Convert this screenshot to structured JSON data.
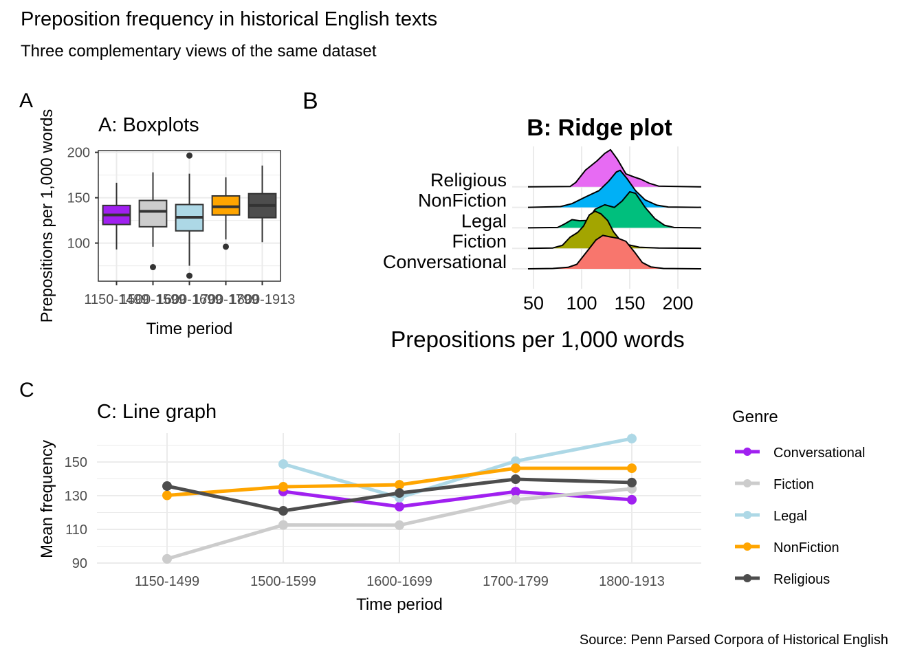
{
  "figure": {
    "title": "Preposition frequency in historical English texts",
    "subtitle": "Three complementary views of the same dataset",
    "caption": "Source: Penn Parsed Corpora of Historical English",
    "tags": [
      "A",
      "B",
      "C"
    ]
  },
  "colors": {
    "Conversational": "#A020F0",
    "Fiction": "#CCCCCC",
    "Legal": "#ADD8E6",
    "NonFiction": "#FFA500",
    "Religious": "#4D4D4D",
    "ridge_Conversational": "#F8766D",
    "ridge_Fiction": "#A3A500",
    "ridge_Legal": "#00BF7D",
    "ridge_NonFiction": "#00B0F6",
    "ridge_Religious": "#E76BF3",
    "grid": "#EBEBEB"
  },
  "chart_data": [
    {
      "type": "box",
      "panel": "A",
      "title": "A: Boxplots",
      "xlabel": "Time period",
      "ylabel": "Prepositions per 1,000 words",
      "categories": [
        "1150-1499",
        "1500-1599",
        "1600-1699",
        "1700-1799",
        "1800-1913"
      ],
      "fill_colors": [
        "#A020F0",
        "#CCCCCC",
        "#ADD8E6",
        "#FFA500",
        "#4D4D4D"
      ],
      "yticks": [
        100,
        150,
        200
      ],
      "ylim": [
        58,
        202
      ],
      "boxes": [
        {
          "whisker_low": 93,
          "q1": 120.5,
          "median": 131,
          "q3": 141.5,
          "whisker_high": 166.5,
          "outliers": []
        },
        {
          "whisker_low": 96,
          "q1": 118,
          "median": 135,
          "q3": 147,
          "whisker_high": 178,
          "outliers": [
            73.5
          ]
        },
        {
          "whisker_low": 75,
          "q1": 113.5,
          "median": 128.5,
          "q3": 142.5,
          "whisker_high": 176.5,
          "outliers": [
            196.5,
            64
          ]
        },
        {
          "whisker_low": 104,
          "q1": 131,
          "median": 140,
          "q3": 152,
          "whisker_high": 172.5,
          "outliers": [
            96
          ]
        },
        {
          "whisker_low": 101,
          "q1": 128,
          "median": 141.5,
          "q3": 154.5,
          "whisker_high": 185.5,
          "outliers": []
        }
      ]
    },
    {
      "type": "ridge",
      "panel": "B",
      "title": "B: Ridge plot",
      "xlabel": "Prepositions per 1,000 words",
      "xticks": [
        50,
        100,
        150,
        200
      ],
      "xlim": [
        44,
        225
      ],
      "rows": [
        "Conversational",
        "Fiction",
        "Legal",
        "NonFiction",
        "Religious"
      ],
      "densities": {
        "Conversational": [
          [
            44,
            0
          ],
          [
            70,
            0.01
          ],
          [
            86,
            0.04
          ],
          [
            95,
            0.12
          ],
          [
            105,
            0.45
          ],
          [
            115,
            0.78
          ],
          [
            122,
            0.9
          ],
          [
            130,
            0.86
          ],
          [
            138,
            0.82
          ],
          [
            146,
            0.74
          ],
          [
            155,
            0.45
          ],
          [
            163,
            0.17
          ],
          [
            172,
            0.05
          ],
          [
            185,
            0.01
          ],
          [
            225,
            0
          ]
        ],
        "Fiction": [
          [
            44,
            0
          ],
          [
            70,
            0.01
          ],
          [
            80,
            0.08
          ],
          [
            88,
            0.3
          ],
          [
            96,
            0.43
          ],
          [
            102,
            0.6
          ],
          [
            108,
            0.9
          ],
          [
            114,
            1.0
          ],
          [
            120,
            0.93
          ],
          [
            127,
            0.75
          ],
          [
            133,
            0.45
          ],
          [
            140,
            0.22
          ],
          [
            148,
            0.1
          ],
          [
            160,
            0.03
          ],
          [
            180,
            0.01
          ],
          [
            225,
            0
          ]
        ],
        "Legal": [
          [
            44,
            0
          ],
          [
            75,
            0.01
          ],
          [
            82,
            0.1
          ],
          [
            90,
            0.22
          ],
          [
            98,
            0.19
          ],
          [
            106,
            0.2
          ],
          [
            114,
            0.5
          ],
          [
            124,
            0.62
          ],
          [
            134,
            0.55
          ],
          [
            142,
            0.72
          ],
          [
            150,
            0.97
          ],
          [
            156,
            0.93
          ],
          [
            166,
            0.55
          ],
          [
            176,
            0.25
          ],
          [
            186,
            0.07
          ],
          [
            196,
            0.01
          ],
          [
            225,
            0
          ]
        ],
        "NonFiction": [
          [
            44,
            0
          ],
          [
            78,
            0.02
          ],
          [
            90,
            0.1
          ],
          [
            104,
            0.28
          ],
          [
            118,
            0.45
          ],
          [
            128,
            0.7
          ],
          [
            136,
            0.95
          ],
          [
            140,
            1.0
          ],
          [
            147,
            0.78
          ],
          [
            156,
            0.45
          ],
          [
            166,
            0.2
          ],
          [
            178,
            0.06
          ],
          [
            190,
            0.01
          ],
          [
            225,
            0
          ]
        ],
        "Religious": [
          [
            44,
            0
          ],
          [
            88,
            0.01
          ],
          [
            94,
            0.12
          ],
          [
            104,
            0.45
          ],
          [
            116,
            0.7
          ],
          [
            124,
            0.9
          ],
          [
            130,
            1.0
          ],
          [
            137,
            0.75
          ],
          [
            146,
            0.35
          ],
          [
            154,
            0.27
          ],
          [
            162,
            0.2
          ],
          [
            170,
            0.1
          ],
          [
            180,
            0.02
          ],
          [
            225,
            0
          ]
        ]
      }
    },
    {
      "type": "line",
      "panel": "C",
      "title": "C: Line graph",
      "xlabel": "Time period",
      "ylabel": "Mean frequency",
      "categories": [
        "1150-1499",
        "1500-1599",
        "1600-1699",
        "1700-1799",
        "1800-1913"
      ],
      "yticks": [
        90,
        110,
        130,
        150
      ],
      "ylim": [
        89.6,
        167
      ],
      "legend_title": "Genre",
      "legend_position": "right",
      "series": [
        {
          "name": "Conversational",
          "color": "#A020F0",
          "values": [
            null,
            132.5,
            123.5,
            132.4,
            127.6
          ]
        },
        {
          "name": "Fiction",
          "color": "#CCCCCC",
          "values": [
            92.5,
            112.6,
            112.5,
            127.6,
            134.1
          ]
        },
        {
          "name": "Legal",
          "color": "#ADD8E6",
          "values": [
            null,
            148.8,
            128.8,
            150.5,
            163.9
          ]
        },
        {
          "name": "NonFiction",
          "color": "#FFA500",
          "values": [
            130.2,
            135.3,
            136.5,
            146.3,
            146.3
          ]
        },
        {
          "name": "Religious",
          "color": "#4D4D4D",
          "values": [
            135.7,
            121.0,
            131.6,
            139.8,
            137.8
          ]
        }
      ]
    }
  ]
}
